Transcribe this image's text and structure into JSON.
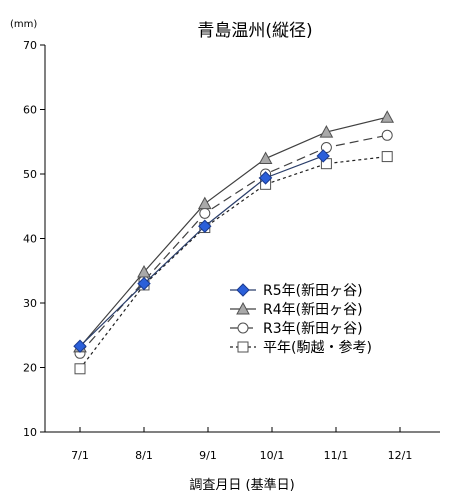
{
  "chart_data": {
    "type": "line",
    "title": "青島温州(縦径)",
    "unit_label": "(mm)",
    "xlabel": "調査月日 (基準日)",
    "ylabel": "",
    "categories": [
      "7/1",
      "8/1",
      "9/1",
      "10/1",
      "11/1",
      "12/1"
    ],
    "ylim": [
      10,
      70
    ],
    "yticks": [
      "10",
      "20",
      "30",
      "40",
      "50",
      "60",
      "70"
    ],
    "grid": false,
    "legend_position": "center-right",
    "series": [
      {
        "name": "R5年(新田ヶ谷)",
        "x": [
          0,
          1,
          1.95,
          2.9,
          3.8
        ],
        "values": [
          23.3,
          33.0,
          41.9,
          49.4,
          52.8
        ],
        "color": "#1f4fc4",
        "marker": "diamond",
        "dash": "solid",
        "filled": true
      },
      {
        "name": "R4年(新田ヶ谷)",
        "x": [
          0,
          1,
          1.95,
          2.9,
          3.85,
          4.8
        ],
        "values": [
          23.2,
          34.8,
          45.4,
          52.4,
          56.5,
          58.8
        ],
        "color": "#404040",
        "marker": "triangle",
        "dash": "solid",
        "filled": true
      },
      {
        "name": "R3年(新田ヶ谷)",
        "x": [
          0,
          1,
          1.95,
          2.9,
          3.85,
          4.8
        ],
        "values": [
          22.2,
          33.4,
          43.9,
          50.0,
          54.1,
          56.0
        ],
        "color": "#404040",
        "marker": "circle",
        "dash": "longdash",
        "filled": false
      },
      {
        "name": "平年(駒越・参考)",
        "x": [
          0,
          1,
          1.95,
          2.9,
          3.85,
          4.8
        ],
        "values": [
          19.8,
          32.8,
          41.7,
          48.4,
          51.6,
          52.7
        ],
        "color": "#202020",
        "marker": "square",
        "dash": "shortdash",
        "filled": false
      }
    ]
  }
}
